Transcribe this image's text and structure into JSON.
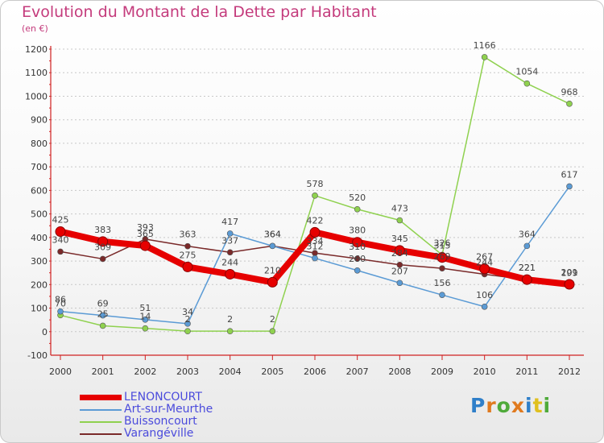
{
  "title": "Evolution du Montant de la Dette par Habitant",
  "unit": "(en €)",
  "brand": {
    "letters": [
      "P",
      "r",
      "o",
      "x",
      "i",
      "t",
      "i"
    ],
    "colors": [
      "#2f7fc9",
      "#e07a1f",
      "#4faa3a",
      "#e07a1f",
      "#2f7fc9",
      "#e0c01f",
      "#4faa3a"
    ]
  },
  "chart_data": {
    "type": "line",
    "x": [
      "2000",
      "2001",
      "2002",
      "2003",
      "2004",
      "2005",
      "2006",
      "2007",
      "2008",
      "2009",
      "2010",
      "2011",
      "2012"
    ],
    "ylim": [
      -100,
      1200
    ],
    "yticks": [
      "-100",
      "0",
      "100",
      "200",
      "300",
      "400",
      "500",
      "600",
      "700",
      "800",
      "900",
      "1000",
      "1100",
      "1200"
    ],
    "grid": "horizontal dashed",
    "legend_position": "bottom-left",
    "series": [
      {
        "name": "LENONCOURT",
        "color": "#e60000",
        "values": [
          425,
          383,
          365,
          275,
          244,
          210,
          422,
          380,
          345,
          315,
          267,
          221,
          201
        ],
        "labels": [
          "425",
          "383",
          "365",
          "275",
          "244",
          "210",
          "422",
          "380",
          "345",
          "315",
          "267",
          "221",
          "201"
        ]
      },
      {
        "name": "Art-sur-Meurthe",
        "color": "#5b9bd5",
        "values": [
          86,
          69,
          51,
          34,
          417,
          364,
          312,
          260,
          207,
          156,
          106,
          364,
          617
        ],
        "labels": [
          "86",
          "69",
          "51",
          "34",
          "417",
          "364",
          "312",
          "260",
          "207",
          "156",
          "106",
          "364",
          "617"
        ]
      },
      {
        "name": "Buissoncourt",
        "color": "#8fd14f",
        "values": [
          70,
          25,
          14,
          2,
          2,
          2,
          578,
          520,
          473,
          326,
          1166,
          1054,
          968
        ],
        "labels": [
          "70",
          "25",
          "14",
          "2",
          "2",
          "2",
          "578",
          "520",
          "473",
          "326",
          "1166",
          "1054",
          "968"
        ]
      },
      {
        "name": "Varangéville",
        "color": "#7a2a2a",
        "values": [
          340,
          309,
          393,
          363,
          337,
          364,
          334,
          310,
          284,
          269,
          244,
          221,
          199
        ],
        "labels": [
          "340",
          "309",
          "393",
          "363",
          "337",
          "364",
          "334",
          "310",
          "284",
          "269",
          "244",
          "221",
          "199"
        ]
      }
    ]
  }
}
